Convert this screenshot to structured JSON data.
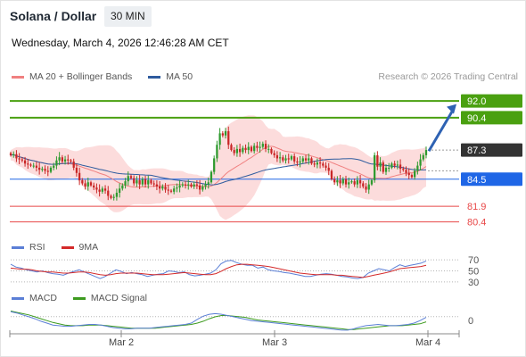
{
  "header": {
    "title": "Solana / Dollar",
    "timeframe": "30 MIN",
    "datetime": "Wednesday, March 4, 2026 12:46:28 AM CET"
  },
  "price_panel": {
    "legend": [
      {
        "label": "MA 20 + Bollinger Bands",
        "color": "#f08080"
      },
      {
        "label": "MA 50",
        "color": "#2e5b9e"
      }
    ],
    "copyright": "Research © 2026 Trading Central"
  },
  "rsi_panel": {
    "legend": [
      {
        "label": "RSI",
        "color": "#5b7fd6"
      },
      {
        "label": "9MA",
        "color": "#d42a2a"
      }
    ],
    "levels": [
      "70",
      "50",
      "30"
    ]
  },
  "macd_panel": {
    "legend": [
      {
        "label": "MACD",
        "color": "#5b7fd6"
      },
      {
        "label": "MACD Signal",
        "color": "#3d9b1f"
      }
    ],
    "zero_label": "0"
  },
  "x_axis": {
    "labels": [
      "Mar 2",
      "Mar 3",
      "Mar 4"
    ]
  },
  "colors": {
    "up": "#2e9a2e",
    "down": "#c92626",
    "bb_fill": "#fbd6d6",
    "ma20": "#f08080",
    "ma50": "#2e5b9e",
    "target": "#4aa010",
    "support": "#1f66e6",
    "red_level": "#e84848",
    "last": "#333333",
    "arrow": "#2e62b3"
  },
  "chart_data": [
    {
      "type": "candlestick",
      "title": "Solana / Dollar",
      "ylim": [
        79.6,
        93.3
      ],
      "levels": [
        {
          "value": 92.0,
          "label": "92.0",
          "kind": "target"
        },
        {
          "value": 90.4,
          "label": "90.4",
          "kind": "target"
        },
        {
          "value": 87.3,
          "label": "87.3",
          "kind": "last"
        },
        {
          "value": 84.5,
          "label": "84.5",
          "kind": "pivot"
        },
        {
          "value": 81.9,
          "label": "81.9",
          "kind": "support"
        },
        {
          "value": 80.4,
          "label": "80.4",
          "kind": "support"
        }
      ],
      "forecast_arrow": {
        "from": 87.2,
        "to": 91.7
      },
      "closes": [
        86.8,
        86.9,
        86.5,
        86.4,
        86.3,
        86.0,
        85.9,
        85.8,
        85.8,
        85.6,
        85.4,
        85.5,
        85.3,
        85.2,
        85.6,
        85.8,
        86.3,
        86.6,
        86.2,
        86.4,
        86.3,
        86.2,
        85.6,
        85.1,
        84.4,
        84.1,
        83.8,
        84.2,
        83.9,
        83.7,
        83.5,
        83.3,
        83.6,
        83.4,
        82.9,
        82.7,
        82.8,
        83.2,
        83.6,
        83.9,
        84.3,
        84.8,
        84.6,
        84.1,
        84.4,
        84.0,
        84.5,
        84.0,
        84.4,
        84.1,
        84.0,
        83.8,
        83.6,
        83.8,
        83.5,
        83.4,
        83.3,
        83.6,
        83.7,
        83.9,
        84.0,
        83.9,
        84.0,
        83.8,
        84.0,
        83.9,
        83.5,
        83.8,
        84.0,
        84.2,
        85.2,
        86.5,
        87.8,
        88.9,
        88.7,
        89.1,
        87.8,
        87.3,
        87.0,
        87.4,
        87.1,
        87.5,
        87.3,
        87.6,
        87.2,
        87.7,
        87.5,
        87.6,
        87.9,
        87.4,
        87.4,
        87.0,
        86.8,
        86.5,
        86.6,
        86.3,
        86.5,
        86.4,
        86.7,
        86.2,
        86.1,
        86.2,
        86.5,
        86.3,
        86.5,
        86.0,
        85.9,
        86.1,
        86.0,
        85.8,
        85.6,
        85.3,
        84.5,
        84.2,
        84.4,
        84.1,
        84.5,
        84.0,
        84.2,
        84.3,
        84.0,
        84.4,
        84.1,
        83.8,
        83.5,
        84.0,
        84.4,
        86.8,
        85.7,
        86.1,
        85.2,
        85.6,
        85.6,
        86.0,
        85.8,
        85.9,
        85.5,
        85.4,
        85.1,
        84.9,
        84.7,
        85.3,
        85.8,
        86.4,
        86.8,
        87.3
      ]
    },
    {
      "type": "line",
      "title": "RSI",
      "ylim": [
        20,
        80
      ],
      "series": [
        {
          "name": "RSI",
          "values": [
            62,
            57,
            55,
            52,
            50,
            48,
            50,
            47,
            45,
            44,
            42,
            46,
            49,
            52,
            48,
            44,
            40,
            36,
            40,
            46,
            52,
            49,
            45,
            47,
            45,
            43,
            40,
            42,
            44,
            45,
            50,
            49,
            47,
            48,
            43,
            41,
            42,
            44,
            46,
            52,
            63,
            68,
            69,
            65,
            62,
            60,
            60,
            55,
            57,
            52,
            50,
            49,
            47,
            46,
            44,
            42,
            40,
            40,
            42,
            44,
            45,
            44,
            42,
            40,
            39,
            37,
            36,
            38,
            46,
            50,
            54,
            52,
            50,
            56,
            61,
            58,
            60,
            62,
            64,
            68
          ]
        },
        {
          "name": "9MA",
          "values": [
            55,
            54,
            53,
            53,
            52,
            50,
            49,
            48,
            48,
            47,
            46,
            46,
            47,
            48,
            48,
            47,
            45,
            43,
            42,
            43,
            45,
            46,
            46,
            46,
            46,
            45,
            44,
            43,
            43,
            43,
            44,
            45,
            46,
            47,
            46,
            45,
            44,
            43,
            43,
            45,
            49,
            54,
            58,
            61,
            62,
            62,
            61,
            60,
            59,
            58,
            56,
            54,
            52,
            50,
            48,
            46,
            45,
            44,
            43,
            43,
            43,
            43,
            42,
            42,
            41,
            40,
            39,
            38,
            40,
            42,
            44,
            46,
            48,
            51,
            54,
            55,
            56,
            57,
            58,
            60
          ]
        }
      ]
    },
    {
      "type": "line",
      "title": "MACD",
      "ylim": [
        -2.0,
        2.5
      ],
      "series": [
        {
          "name": "MACD",
          "values": [
            1.2,
            1.0,
            0.7,
            0.4,
            0.1,
            -0.3,
            -0.6,
            -0.9,
            -1.0,
            -1.1,
            -1.1,
            -1.0,
            -0.9,
            -0.8,
            -0.8,
            -0.9,
            -1.1,
            -1.3,
            -1.4,
            -1.5,
            -1.5,
            -1.4,
            -1.4,
            -1.4,
            -1.3,
            -1.2,
            -1.1,
            -1.0,
            -0.9,
            -0.8,
            -0.6,
            0.0,
            0.5,
            0.8,
            0.9,
            0.8,
            0.6,
            0.4,
            0.2,
            0.0,
            -0.2,
            -0.3,
            -0.4,
            -0.5,
            -0.6,
            -0.7,
            -0.8,
            -0.9,
            -1.0,
            -1.1,
            -1.2,
            -1.3,
            -1.4,
            -1.5,
            -1.6,
            -1.7,
            -1.7,
            -1.5,
            -1.2,
            -1.0,
            -0.9,
            -0.8,
            -0.9,
            -1.0,
            -1.0,
            -0.9,
            -0.8,
            -0.6,
            -0.2,
            0.3
          ]
        },
        {
          "name": "MACD Signal",
          "values": [
            1.3,
            1.1,
            0.9,
            0.7,
            0.4,
            0.1,
            -0.2,
            -0.5,
            -0.7,
            -0.9,
            -1.0,
            -1.0,
            -1.0,
            -0.9,
            -0.9,
            -0.9,
            -1.0,
            -1.1,
            -1.2,
            -1.3,
            -1.4,
            -1.4,
            -1.4,
            -1.4,
            -1.4,
            -1.3,
            -1.2,
            -1.1,
            -1.0,
            -0.9,
            -0.8,
            -0.6,
            -0.3,
            0.1,
            0.4,
            0.6,
            0.6,
            0.5,
            0.4,
            0.3,
            0.1,
            -0.1,
            -0.2,
            -0.3,
            -0.4,
            -0.5,
            -0.6,
            -0.7,
            -0.8,
            -0.9,
            -1.0,
            -1.1,
            -1.2,
            -1.3,
            -1.4,
            -1.5,
            -1.6,
            -1.6,
            -1.5,
            -1.4,
            -1.3,
            -1.2,
            -1.1,
            -1.0,
            -1.0,
            -1.0,
            -0.9,
            -0.8,
            -0.7,
            -0.4
          ]
        }
      ]
    }
  ]
}
